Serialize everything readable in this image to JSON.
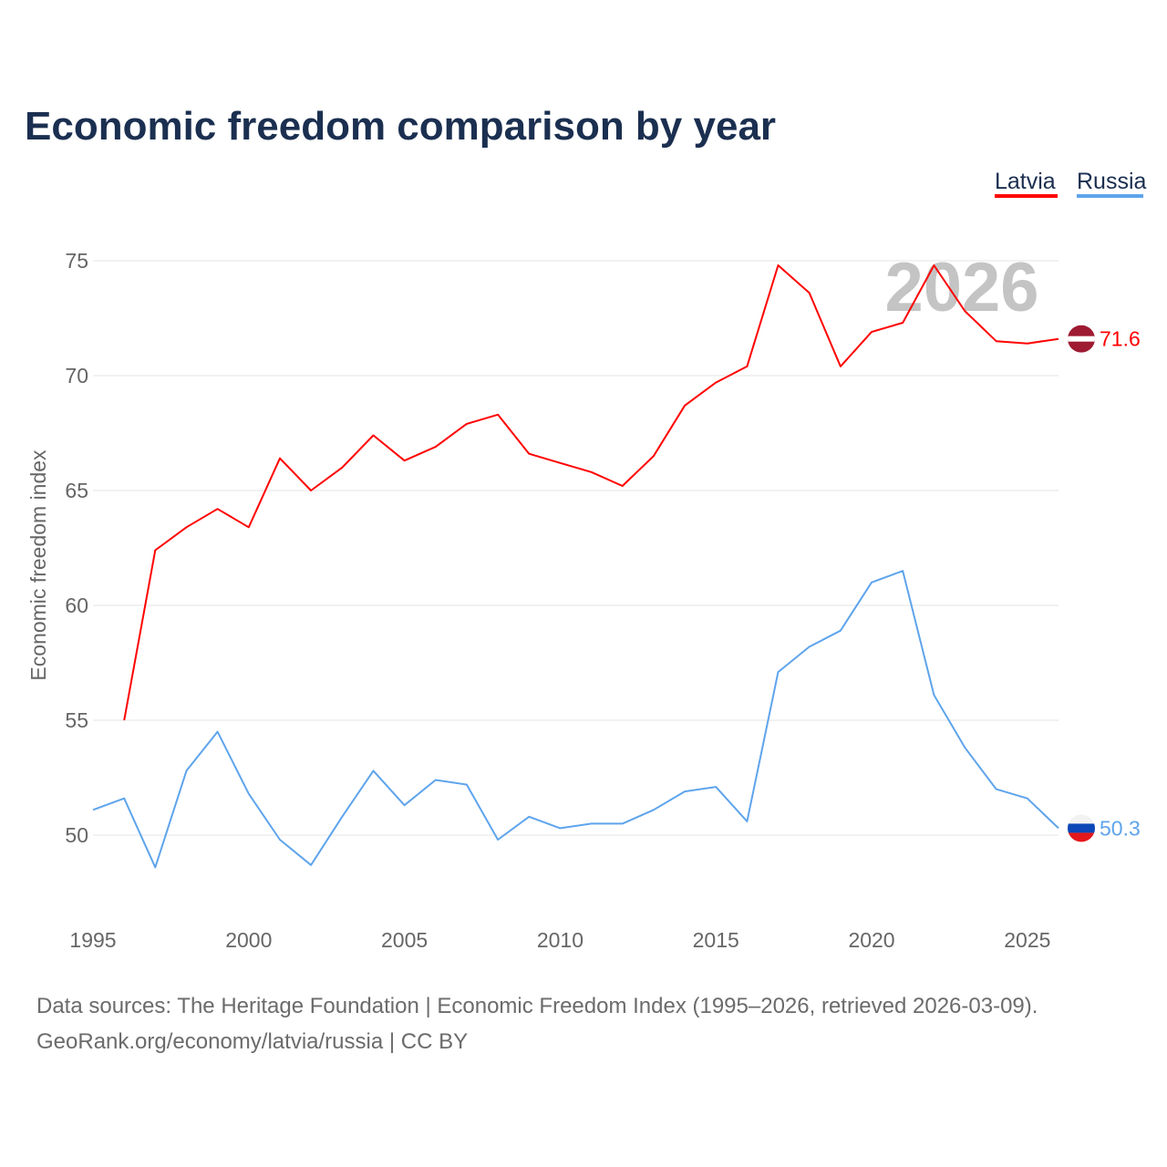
{
  "title": "Economic freedom comparison by year",
  "watermark_year": "2026",
  "footer": {
    "line1": "Data sources: The Heritage Foundation | Economic Freedom Index (1995–2026, retrieved 2026-03-09).",
    "line2": "GeoRank.org/economy/latvia/russia | CC BY"
  },
  "chart_data": {
    "type": "line",
    "title": "Economic freedom comparison by year",
    "xlabel": "",
    "ylabel": "Economic freedom index",
    "xlim": [
      1995,
      2026
    ],
    "ylim": [
      46.5,
      76.5
    ],
    "xticks": [
      1995,
      2000,
      2005,
      2010,
      2015,
      2020,
      2025
    ],
    "yticks": [
      50,
      55,
      60,
      65,
      70,
      75
    ],
    "grid": true,
    "legend_position": "top-right",
    "series": [
      {
        "name": "Latvia",
        "color": "#ff0000",
        "end_label": "71.6",
        "flag": "latvia-flag",
        "x": [
          1996,
          1997,
          1998,
          1999,
          2000,
          2001,
          2002,
          2003,
          2004,
          2005,
          2006,
          2007,
          2008,
          2009,
          2010,
          2011,
          2012,
          2013,
          2014,
          2015,
          2016,
          2017,
          2018,
          2019,
          2020,
          2021,
          2022,
          2023,
          2024,
          2025,
          2026
        ],
        "values": [
          55.0,
          62.4,
          63.4,
          64.2,
          63.4,
          66.4,
          65.0,
          66.0,
          67.4,
          66.3,
          66.9,
          67.9,
          68.3,
          66.6,
          66.2,
          65.8,
          65.2,
          66.5,
          68.7,
          69.7,
          70.4,
          74.8,
          73.6,
          70.4,
          71.9,
          72.3,
          74.8,
          72.8,
          71.5,
          71.4,
          71.6
        ]
      },
      {
        "name": "Russia",
        "color": "#5ea4ec",
        "end_label": "50.3",
        "flag": "russia-flag",
        "x": [
          1995,
          1996,
          1997,
          1998,
          1999,
          2000,
          2001,
          2002,
          2003,
          2004,
          2005,
          2006,
          2007,
          2008,
          2009,
          2010,
          2011,
          2012,
          2013,
          2014,
          2015,
          2016,
          2017,
          2018,
          2019,
          2020,
          2021,
          2022,
          2023,
          2024,
          2025,
          2026
        ],
        "values": [
          51.1,
          51.6,
          48.6,
          52.8,
          54.5,
          51.8,
          49.8,
          48.7,
          50.8,
          52.8,
          51.3,
          52.4,
          52.2,
          49.8,
          50.8,
          50.3,
          50.5,
          50.5,
          51.1,
          51.9,
          52.1,
          50.6,
          57.1,
          58.2,
          58.9,
          61.0,
          61.5,
          56.1,
          53.8,
          52.0,
          51.6,
          50.3
        ]
      }
    ]
  }
}
